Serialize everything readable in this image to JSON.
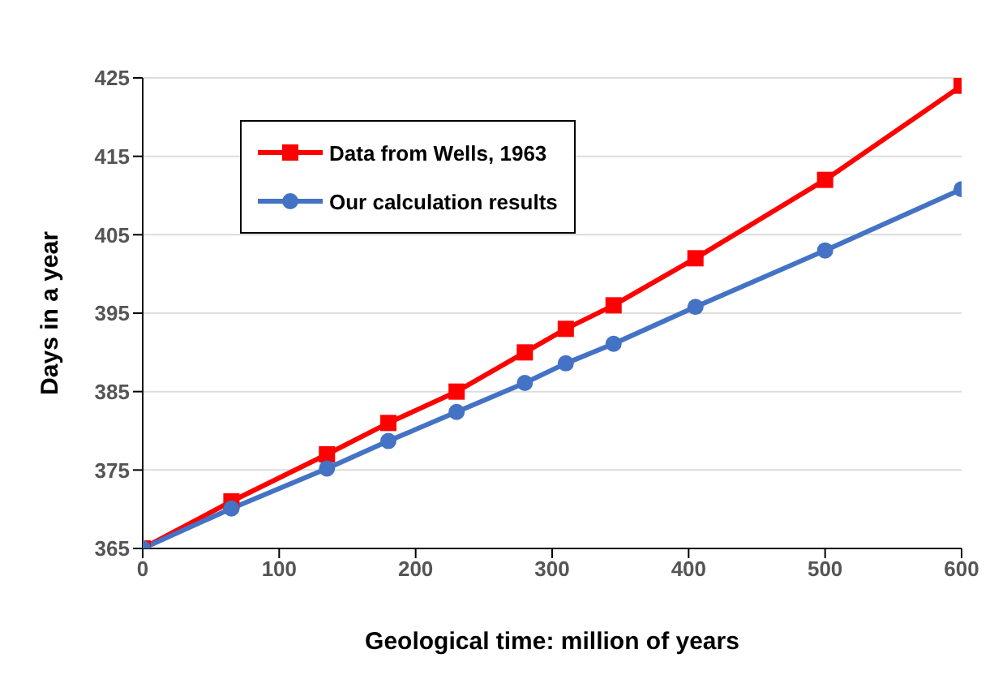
{
  "chart_data": {
    "type": "line",
    "xlabel": "Geological time: million of years",
    "ylabel": "Days in a year",
    "x": [
      0,
      65,
      135,
      180,
      230,
      280,
      310,
      345,
      405,
      500,
      600
    ],
    "series": [
      {
        "name": "Data from Wells, 1963",
        "color": "#ff0000",
        "marker": "square",
        "values": [
          365,
          371,
          377,
          381,
          385,
          390,
          393,
          396,
          402,
          412,
          424
        ]
      },
      {
        "name": "Our calculation results",
        "color": "#4472c4",
        "marker": "circle",
        "values": [
          365,
          370.1,
          375.2,
          378.7,
          382.4,
          386.1,
          388.6,
          391.1,
          395.8,
          403,
          410.8
        ]
      }
    ],
    "xlim": [
      0,
      600
    ],
    "xticks": [
      0,
      100,
      200,
      300,
      400,
      500,
      600
    ],
    "ylim": [
      365,
      425
    ],
    "yticks": [
      365,
      375,
      385,
      395,
      405,
      415,
      425
    ],
    "grid": "y",
    "legend": "top left",
    "line_style": "solid"
  }
}
